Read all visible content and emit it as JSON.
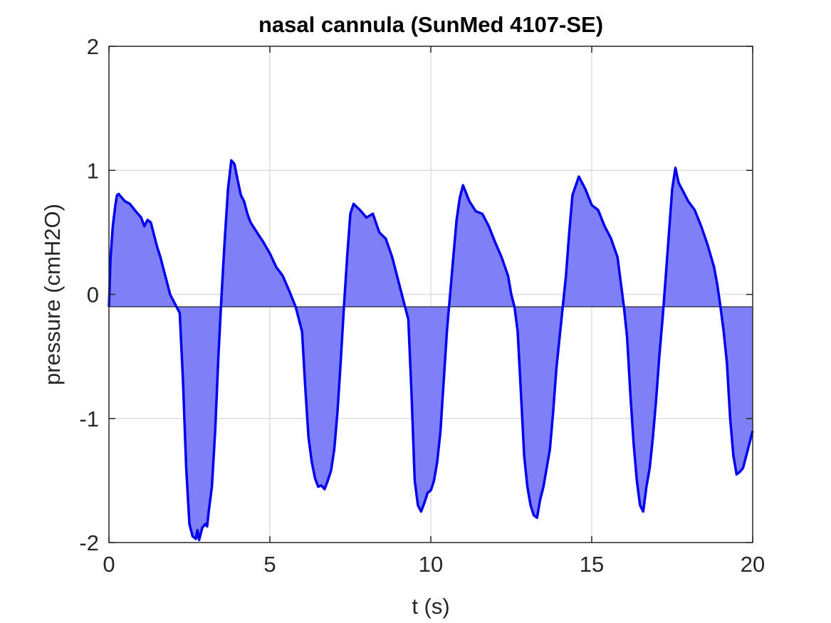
{
  "chart_data": {
    "type": "area",
    "title": "nasal cannula (SunMed 4107-SE)",
    "xlabel": "t (s)",
    "ylabel": "pressure (cmH2O)",
    "xlim": [
      0,
      20
    ],
    "ylim": [
      -2,
      2
    ],
    "xticks": [
      0,
      5,
      10,
      15,
      20
    ],
    "xtick_labels": [
      "0",
      "5",
      "10",
      "15",
      "20"
    ],
    "yticks": [
      -2,
      -1,
      0,
      1,
      2
    ],
    "ytick_labels": [
      "-2",
      "-1",
      "0",
      "1",
      "2"
    ],
    "grid": true,
    "baseline": -0.1,
    "series": [
      {
        "line_color": "#0000ee",
        "fill_color": "#7f7ff7",
        "x": [
          0.0,
          0.05,
          0.12,
          0.2,
          0.25,
          0.3,
          0.4,
          0.5,
          0.65,
          0.8,
          1.0,
          1.1,
          1.2,
          1.3,
          1.4,
          1.5,
          1.6,
          1.7,
          1.8,
          1.9,
          2.0,
          2.1,
          2.2,
          2.3,
          2.4,
          2.5,
          2.6,
          2.7,
          2.75,
          2.8,
          2.9,
          3.0,
          3.05,
          3.1,
          3.2,
          3.3,
          3.4,
          3.5,
          3.6,
          3.7,
          3.8,
          3.9,
          4.0,
          4.1,
          4.2,
          4.3,
          4.4,
          4.6,
          4.8,
          5.0,
          5.2,
          5.4,
          5.6,
          5.8,
          6.0,
          6.1,
          6.2,
          6.3,
          6.4,
          6.5,
          6.6,
          6.7,
          6.8,
          6.9,
          7.0,
          7.1,
          7.2,
          7.3,
          7.4,
          7.5,
          7.6,
          7.8,
          8.0,
          8.2,
          8.4,
          8.6,
          8.8,
          9.0,
          9.1,
          9.2,
          9.3,
          9.4,
          9.5,
          9.6,
          9.7,
          9.8,
          9.9,
          10.0,
          10.1,
          10.2,
          10.3,
          10.4,
          10.5,
          10.6,
          10.7,
          10.8,
          10.9,
          11.0,
          11.2,
          11.4,
          11.6,
          11.8,
          12.0,
          12.2,
          12.4,
          12.5,
          12.6,
          12.7,
          12.8,
          12.9,
          13.0,
          13.1,
          13.2,
          13.3,
          13.4,
          13.5,
          13.6,
          13.7,
          13.8,
          13.9,
          14.0,
          14.1,
          14.2,
          14.3,
          14.4,
          14.6,
          14.8,
          15.0,
          15.2,
          15.4,
          15.6,
          15.8,
          15.9,
          16.0,
          16.1,
          16.2,
          16.3,
          16.4,
          16.5,
          16.6,
          16.7,
          16.8,
          16.9,
          17.0,
          17.1,
          17.2,
          17.3,
          17.4,
          17.5,
          17.6,
          17.7,
          17.8,
          18.0,
          18.2,
          18.4,
          18.6,
          18.8,
          18.9,
          19.0,
          19.1,
          19.2,
          19.3,
          19.4,
          19.5,
          19.6,
          19.7,
          19.8,
          19.9,
          20.0
        ],
        "y": [
          -0.1,
          0.3,
          0.55,
          0.72,
          0.8,
          0.81,
          0.78,
          0.75,
          0.73,
          0.68,
          0.62,
          0.55,
          0.6,
          0.58,
          0.48,
          0.38,
          0.3,
          0.2,
          0.1,
          0.0,
          -0.05,
          -0.1,
          -0.15,
          -0.7,
          -1.4,
          -1.85,
          -1.95,
          -1.97,
          -1.9,
          -1.98,
          -1.88,
          -1.85,
          -1.87,
          -1.75,
          -1.55,
          -1.1,
          -0.5,
          0.0,
          0.45,
          0.85,
          1.08,
          1.05,
          0.92,
          0.8,
          0.75,
          0.65,
          0.58,
          0.5,
          0.42,
          0.33,
          0.22,
          0.15,
          0.03,
          -0.1,
          -0.3,
          -0.75,
          -1.15,
          -1.35,
          -1.48,
          -1.55,
          -1.54,
          -1.57,
          -1.5,
          -1.42,
          -1.25,
          -0.95,
          -0.55,
          -0.1,
          0.3,
          0.65,
          0.73,
          0.68,
          0.62,
          0.65,
          0.5,
          0.45,
          0.3,
          0.1,
          0.0,
          -0.1,
          -0.2,
          -0.8,
          -1.5,
          -1.7,
          -1.75,
          -1.68,
          -1.6,
          -1.58,
          -1.5,
          -1.35,
          -1.1,
          -0.7,
          -0.3,
          0.0,
          0.3,
          0.6,
          0.78,
          0.88,
          0.75,
          0.67,
          0.65,
          0.55,
          0.42,
          0.3,
          0.15,
          0.0,
          -0.1,
          -0.3,
          -0.8,
          -1.3,
          -1.55,
          -1.7,
          -1.78,
          -1.8,
          -1.65,
          -1.55,
          -1.4,
          -1.25,
          -0.95,
          -0.6,
          -0.35,
          -0.1,
          0.15,
          0.5,
          0.8,
          0.95,
          0.85,
          0.72,
          0.68,
          0.55,
          0.45,
          0.3,
          0.1,
          -0.1,
          -0.35,
          -0.8,
          -1.2,
          -1.5,
          -1.7,
          -1.75,
          -1.55,
          -1.4,
          -1.15,
          -0.85,
          -0.5,
          -0.2,
          0.15,
          0.5,
          0.85,
          1.02,
          0.9,
          0.85,
          0.75,
          0.68,
          0.55,
          0.4,
          0.22,
          0.08,
          -0.1,
          -0.3,
          -0.55,
          -1.0,
          -1.3,
          -1.45,
          -1.43,
          -1.4,
          -1.3,
          -1.2,
          -1.1
        ]
      }
    ]
  }
}
